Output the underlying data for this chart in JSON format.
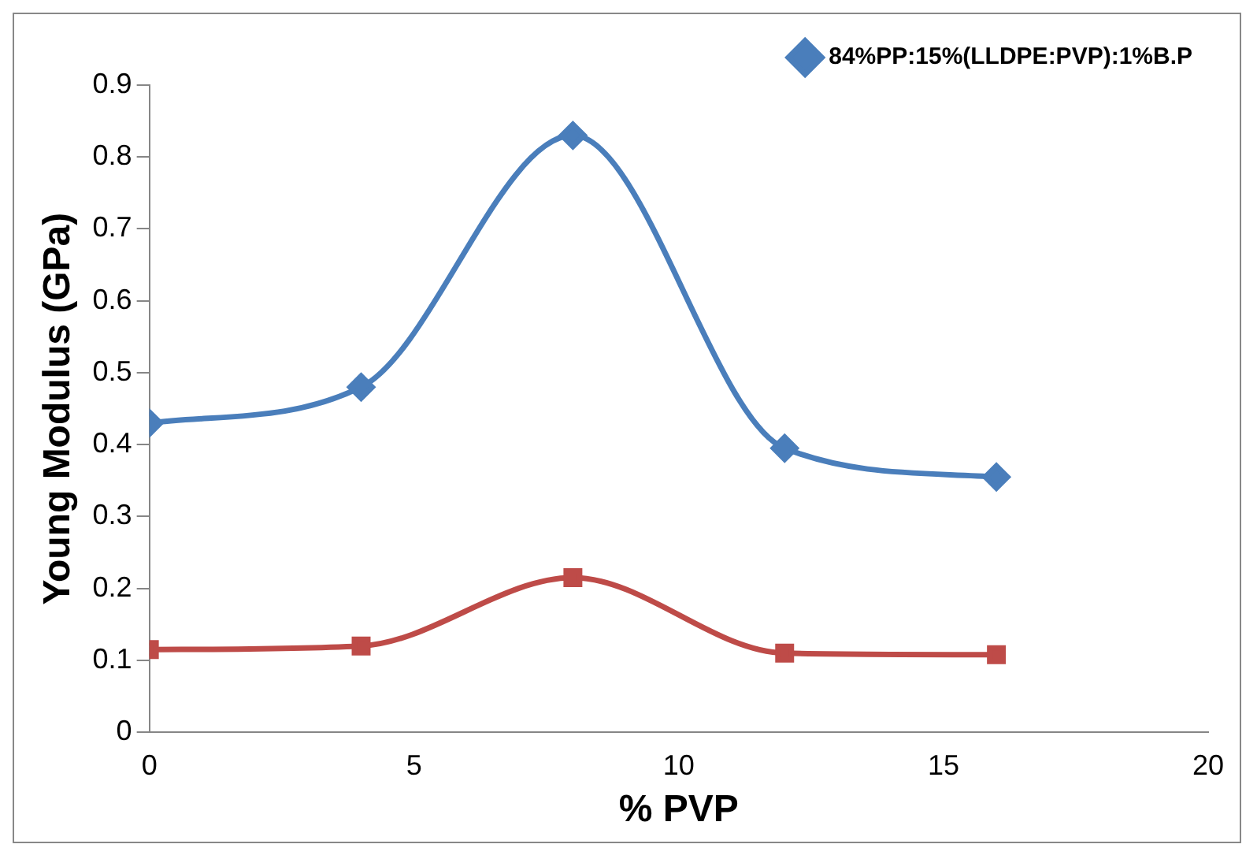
{
  "chart_data": {
    "type": "line",
    "xlabel": "% PVP",
    "ylabel": "Young Modulus (GPa)",
    "xlim": [
      0,
      20
    ],
    "xticks": [
      0,
      5,
      10,
      15,
      20
    ],
    "ylim": [
      0,
      0.9
    ],
    "yticks": [
      0,
      0.1,
      0.2,
      0.3,
      0.4,
      0.5,
      0.6,
      0.7,
      0.8,
      0.9
    ],
    "grid": false,
    "legend": "top right",
    "line_style": "solid",
    "series": [
      {
        "name": "84%PP:15%(LLDPE:PVP):1%B.P",
        "color": "#4a7ebb",
        "marker": "diamond",
        "x": [
          0,
          4,
          8,
          12,
          16
        ],
        "values": [
          0.43,
          0.48,
          0.83,
          0.395,
          0.355
        ]
      },
      {
        "color": "#be4b48",
        "marker": "square",
        "x": [
          0,
          4,
          8,
          12,
          16
        ],
        "values": [
          0.115,
          0.12,
          0.215,
          0.11,
          0.108
        ]
      }
    ]
  }
}
